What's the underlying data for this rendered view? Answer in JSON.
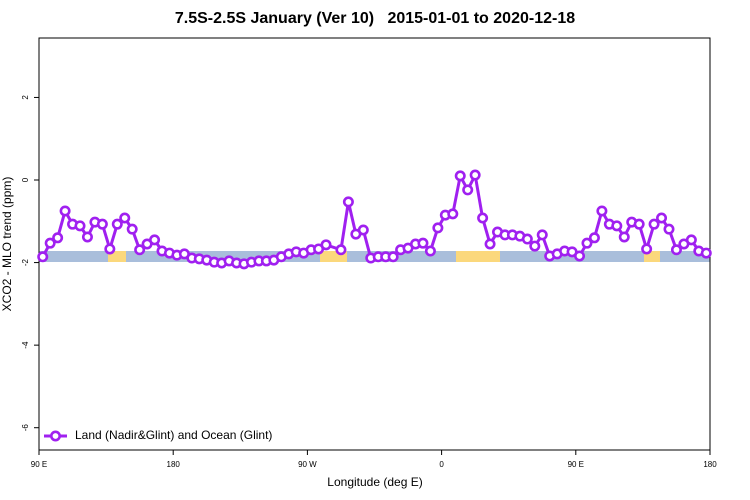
{
  "chart_data": {
    "type": "line",
    "title": "7.5S-2.5S January (Ver 10)   2015-01-01 to 2020-12-18",
    "xlabel": "Longitude (deg E)",
    "ylabel": "XCO2 - MLO trend (ppm)",
    "xlim": [
      90,
      540
    ],
    "ylim": [
      -6.54,
      3.44
    ],
    "xticks": [
      {
        "value": 90,
        "label": "90 E"
      },
      180,
      {
        "value": 270,
        "label": "90 W"
      },
      {
        "value": 360,
        "label": "0"
      },
      {
        "value": 450,
        "label": "90 E"
      },
      {
        "value": 540,
        "label": "180"
      }
    ],
    "yticks": [
      -6,
      -4,
      -2,
      0,
      2
    ],
    "legend": "bottom-left",
    "x": [
      92.5,
      97.5,
      102.5,
      107.5,
      112.5,
      117.5,
      122.5,
      127.5,
      132.5,
      137.5,
      142.5,
      147.5,
      152.5,
      157.5,
      162.5,
      167.5,
      172.5,
      177.5,
      182.5,
      187.5,
      192.5,
      197.5,
      202.5,
      207.5,
      212.5,
      217.5,
      222.5,
      227.5,
      232.5,
      237.5,
      242.5,
      247.5,
      252.5,
      257.5,
      262.5,
      267.5,
      272.5,
      277.5,
      282.5,
      292.5,
      297.5,
      302.5,
      307.5,
      312.5,
      317.5,
      322.5,
      327.5,
      332.5,
      337.5,
      342.5,
      347.5,
      352.5,
      357.5,
      362.5,
      367.5,
      372.5,
      377.5,
      382.5,
      387.5,
      392.5,
      397.5,
      402.5,
      407.5,
      412.5,
      417.5,
      422.5,
      427.5,
      432.5,
      437.5,
      442.5,
      447.5,
      452.5,
      457.5,
      462.5,
      467.5,
      472.5,
      477.5,
      482.5,
      487.5,
      492.5,
      497.5,
      502.5,
      507.5,
      512.5,
      517.5,
      522.5,
      527.5,
      532.5,
      537.5
    ],
    "series": [
      {
        "name": "Land (Nadir&Glint) and Ocean (Glint)",
        "color": "#a020f0",
        "values": [
          -1.86,
          -1.53,
          -1.4,
          -0.75,
          -1.07,
          -1.11,
          -1.38,
          -1.02,
          -1.07,
          -1.67,
          -1.07,
          -0.92,
          -1.19,
          -1.69,
          -1.55,
          -1.45,
          -1.72,
          -1.77,
          -1.82,
          -1.79,
          -1.89,
          -1.91,
          -1.94,
          -1.99,
          -2.01,
          -1.96,
          -2.01,
          -2.03,
          -1.99,
          -1.96,
          -1.96,
          -1.94,
          -1.86,
          -1.79,
          -1.74,
          -1.77,
          -1.69,
          -1.67,
          -1.57,
          -1.69,
          -0.53,
          -1.31,
          -1.21,
          -1.89,
          -1.86,
          -1.86,
          -1.86,
          -1.69,
          -1.65,
          -1.55,
          -1.53,
          -1.72,
          -1.16,
          -0.85,
          -0.82,
          0.1,
          -0.24,
          0.12,
          -0.92,
          -1.55,
          -1.26,
          -1.33,
          -1.33,
          -1.36,
          -1.43,
          -1.6,
          -1.33,
          -1.84,
          -1.79,
          -1.72,
          -1.74,
          -1.84,
          -1.53,
          -1.4,
          -0.75,
          -1.07,
          -1.11,
          -1.38,
          -1.02,
          -1.07,
          -1.67,
          -1.07,
          -0.92,
          -1.19,
          -1.69,
          -1.55,
          -1.45,
          -1.72,
          -1.77
        ]
      }
    ]
  }
}
